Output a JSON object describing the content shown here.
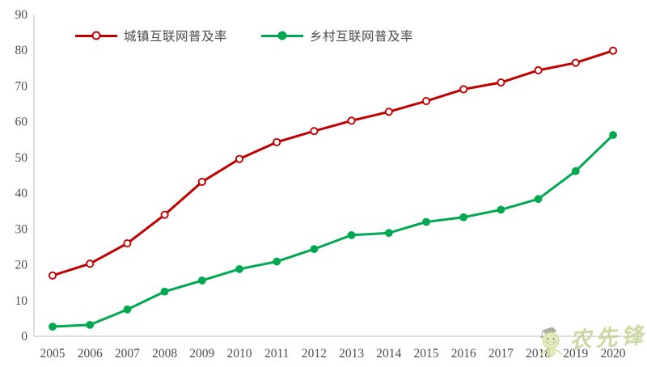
{
  "chart_data": {
    "type": "line",
    "title": "",
    "xlabel": "",
    "ylabel": "",
    "x": [
      "2005",
      "2006",
      "2007",
      "2008",
      "2009",
      "2010",
      "2011",
      "2012",
      "2013",
      "2014",
      "2015",
      "2016",
      "2017",
      "2018",
      "2019",
      "2020"
    ],
    "series": [
      {
        "name": "城镇互联网普及率",
        "color": "#c00000",
        "marker": "open-circle",
        "values": [
          17.0,
          20.3,
          26.0,
          34.0,
          43.2,
          49.6,
          54.3,
          57.4,
          60.3,
          62.8,
          65.8,
          69.1,
          71.0,
          74.4,
          76.5,
          79.9
        ]
      },
      {
        "name": "乡村互联网普及率",
        "color": "#00a94f",
        "marker": "filled-circle",
        "values": [
          2.7,
          3.2,
          7.5,
          12.5,
          15.6,
          18.8,
          20.9,
          24.4,
          28.3,
          28.9,
          32.0,
          33.3,
          35.4,
          38.4,
          46.2,
          56.3
        ]
      }
    ],
    "ylim": [
      0,
      90
    ],
    "ytick_step": 10,
    "grid": false,
    "legend_position": "top-left"
  },
  "legend": {
    "urban": "城镇互联网普及率",
    "rural": "乡村互联网普及率"
  },
  "watermark": {
    "text": "农先锋",
    "mascot": "graduate-smiley-mascot",
    "color": "#c2d192"
  },
  "colors": {
    "urban": "#c00000",
    "rural": "#00a94f",
    "axis_line": "#c9c9c9",
    "tick_text": "#4d4d4d",
    "background": "#ffffff"
  }
}
